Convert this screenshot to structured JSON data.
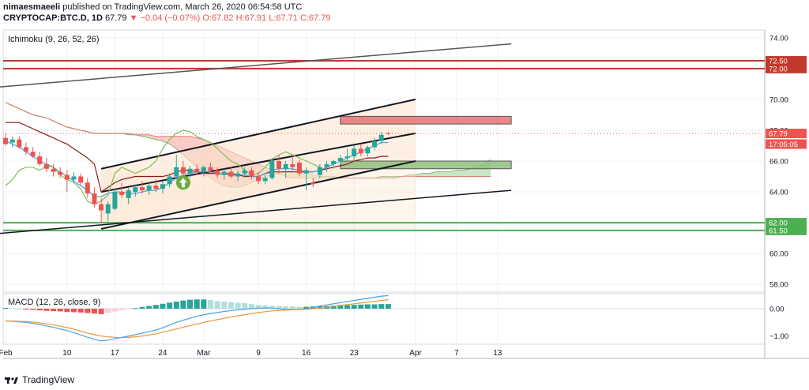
{
  "header": {
    "publisher": "nimaesmaeeli",
    "published_line": " published on TradingView.com, March 26, 2020 06:54:58 UTC",
    "symbol": "CRYPTOCAP:BTC.D, 1D",
    "last": "67.79",
    "change": "▼ −0.04 (−0.07%)",
    "o": "O:67.82",
    "h": "H:67.91",
    "l": "L:67.71",
    "c": "C:67.79"
  },
  "indicators": {
    "ichimoku_label": "Ichimoku (9, 26, 52, 26)",
    "macd_label": "MACD (12, 26, close, 9)"
  },
  "brand": {
    "name": "TradingView"
  },
  "colors": {
    "up": "#26a69a",
    "down": "#ef5350",
    "tenkan": "#4aa3df",
    "kijun": "#8b1a1a",
    "chikou": "#7cbf5a",
    "cloud_bull": "#b7dfb0",
    "cloud_bear": "#f7b9b4",
    "channel_fill": "#fbe3cc",
    "macd_line": "#4aa3df",
    "signal_line": "#e79a3b",
    "res_line": "#c0392b",
    "sup_line": "#4caf50"
  },
  "chart_data": {
    "type": "candlestick",
    "price_axis": {
      "min": 57.5,
      "max": 74.5,
      "ticks": [
        58,
        60,
        62,
        64,
        66,
        68,
        70,
        72,
        74
      ]
    },
    "macd_axis": {
      "min": -1.3,
      "max": 0.55,
      "ticks": [
        0.0,
        -1.0
      ]
    },
    "x_axis": {
      "labels": [
        {
          "label": "Feb",
          "day": 0
        },
        {
          "label": "10",
          "day": 9
        },
        {
          "label": "17",
          "day": 16
        },
        {
          "label": "24",
          "day": 23
        },
        {
          "label": "Mar",
          "day": 29
        },
        {
          "label": "9",
          "day": 37
        },
        {
          "label": "16",
          "day": 44
        },
        {
          "label": "23",
          "day": 51
        },
        {
          "label": "Apr",
          "day": 60
        },
        {
          "label": "7",
          "day": 66
        },
        {
          "label": "13",
          "day": 72
        }
      ]
    },
    "price_labels": [
      {
        "value": 72.5,
        "text": "72.50",
        "color": "#c0392b"
      },
      {
        "value": 72.0,
        "text": "72.00",
        "color": "#c0392b"
      },
      {
        "value": 67.79,
        "text": "67.79",
        "color": "#ef5350"
      },
      {
        "value": 67.1,
        "text": "17:05:05",
        "color": "#ef5350"
      },
      {
        "value": 62.0,
        "text": "62.00",
        "color": "#4caf50"
      },
      {
        "value": 61.5,
        "text": "61.50",
        "color": "#4caf50"
      }
    ],
    "candles": [
      {
        "o": 67.5,
        "h": 67.8,
        "l": 67.0,
        "c": 67.1
      },
      {
        "o": 67.2,
        "h": 67.6,
        "l": 66.9,
        "c": 67.4
      },
      {
        "o": 67.4,
        "h": 67.6,
        "l": 66.8,
        "c": 66.9
      },
      {
        "o": 66.9,
        "h": 67.2,
        "l": 66.4,
        "c": 66.6
      },
      {
        "o": 66.6,
        "h": 66.9,
        "l": 66.2,
        "c": 66.3
      },
      {
        "o": 66.3,
        "h": 66.6,
        "l": 65.7,
        "c": 65.8
      },
      {
        "o": 65.8,
        "h": 66.2,
        "l": 65.3,
        "c": 65.5
      },
      {
        "o": 65.5,
        "h": 65.8,
        "l": 65.0,
        "c": 65.3
      },
      {
        "o": 65.3,
        "h": 65.6,
        "l": 64.9,
        "c": 65.1
      },
      {
        "o": 65.1,
        "h": 65.4,
        "l": 64.0,
        "c": 64.8
      },
      {
        "o": 64.8,
        "h": 65.3,
        "l": 64.6,
        "c": 65.0
      },
      {
        "o": 65.0,
        "h": 65.2,
        "l": 64.4,
        "c": 64.6
      },
      {
        "o": 64.6,
        "h": 64.9,
        "l": 63.6,
        "c": 63.9
      },
      {
        "o": 63.9,
        "h": 64.3,
        "l": 63.0,
        "c": 63.2
      },
      {
        "o": 63.2,
        "h": 63.6,
        "l": 62.0,
        "c": 62.8
      },
      {
        "o": 62.6,
        "h": 63.4,
        "l": 62.1,
        "c": 63.2
      },
      {
        "o": 62.9,
        "h": 64.2,
        "l": 62.8,
        "c": 64.0
      },
      {
        "o": 64.0,
        "h": 64.6,
        "l": 63.6,
        "c": 63.8
      },
      {
        "o": 63.6,
        "h": 64.3,
        "l": 63.2,
        "c": 64.1
      },
      {
        "o": 64.0,
        "h": 64.5,
        "l": 63.7,
        "c": 64.3
      },
      {
        "o": 64.3,
        "h": 64.7,
        "l": 63.9,
        "c": 64.1
      },
      {
        "o": 64.1,
        "h": 64.6,
        "l": 63.8,
        "c": 64.4
      },
      {
        "o": 64.4,
        "h": 64.8,
        "l": 64.0,
        "c": 64.2
      },
      {
        "o": 64.2,
        "h": 64.7,
        "l": 63.9,
        "c": 64.5
      },
      {
        "o": 64.5,
        "h": 65.2,
        "l": 64.3,
        "c": 65.0
      },
      {
        "o": 65.0,
        "h": 66.4,
        "l": 64.8,
        "c": 65.6
      },
      {
        "o": 65.6,
        "h": 66.0,
        "l": 65.0,
        "c": 65.2
      },
      {
        "o": 65.2,
        "h": 65.7,
        "l": 64.9,
        "c": 65.5
      },
      {
        "o": 65.5,
        "h": 65.8,
        "l": 65.1,
        "c": 65.3
      },
      {
        "o": 65.3,
        "h": 65.7,
        "l": 65.0,
        "c": 65.6
      },
      {
        "o": 65.6,
        "h": 65.9,
        "l": 65.2,
        "c": 65.4
      },
      {
        "o": 65.4,
        "h": 65.6,
        "l": 64.9,
        "c": 65.1
      },
      {
        "o": 65.1,
        "h": 65.5,
        "l": 64.8,
        "c": 65.3
      },
      {
        "o": 65.3,
        "h": 65.6,
        "l": 64.9,
        "c": 65.0
      },
      {
        "o": 65.0,
        "h": 65.4,
        "l": 64.7,
        "c": 65.2
      },
      {
        "o": 65.2,
        "h": 65.6,
        "l": 64.9,
        "c": 65.4
      },
      {
        "o": 65.4,
        "h": 65.6,
        "l": 64.8,
        "c": 65.0
      },
      {
        "o": 65.0,
        "h": 65.3,
        "l": 64.5,
        "c": 64.7
      },
      {
        "o": 64.7,
        "h": 65.1,
        "l": 64.5,
        "c": 64.9
      },
      {
        "o": 64.9,
        "h": 66.2,
        "l": 64.8,
        "c": 66.0
      },
      {
        "o": 66.0,
        "h": 66.4,
        "l": 65.2,
        "c": 65.5
      },
      {
        "o": 65.5,
        "h": 66.0,
        "l": 64.9,
        "c": 65.8
      },
      {
        "o": 65.8,
        "h": 66.4,
        "l": 65.4,
        "c": 65.6
      },
      {
        "o": 65.9,
        "h": 66.1,
        "l": 65.0,
        "c": 65.2
      },
      {
        "o": 65.2,
        "h": 65.6,
        "l": 64.1,
        "c": 65.4
      },
      {
        "o": 64.6,
        "h": 64.9,
        "l": 64.3,
        "c": 64.5
      },
      {
        "o": 65.1,
        "h": 65.8,
        "l": 64.9,
        "c": 65.6
      },
      {
        "o": 65.6,
        "h": 66.0,
        "l": 65.3,
        "c": 65.8
      },
      {
        "o": 65.8,
        "h": 66.1,
        "l": 65.5,
        "c": 66.0
      },
      {
        "o": 66.0,
        "h": 66.4,
        "l": 65.8,
        "c": 66.2
      },
      {
        "o": 66.2,
        "h": 66.8,
        "l": 66.0,
        "c": 66.3
      },
      {
        "o": 66.3,
        "h": 67.0,
        "l": 66.0,
        "c": 66.8
      },
      {
        "o": 66.8,
        "h": 67.1,
        "l": 66.3,
        "c": 66.5
      },
      {
        "o": 66.5,
        "h": 67.0,
        "l": 66.3,
        "c": 66.9
      },
      {
        "o": 66.9,
        "h": 67.5,
        "l": 66.7,
        "c": 67.3
      },
      {
        "o": 67.3,
        "h": 67.9,
        "l": 67.1,
        "c": 67.7
      },
      {
        "o": 67.8,
        "h": 67.9,
        "l": 67.7,
        "c": 67.79
      }
    ],
    "tenkan": [
      67.3,
      67.1,
      66.9,
      66.6,
      66.3,
      66.0,
      65.8,
      65.6,
      65.3,
      65.0,
      64.7,
      64.4,
      64.1,
      63.7,
      63.7,
      63.9,
      64.0,
      64.0,
      63.9,
      63.9,
      64.0,
      64.1,
      64.1,
      64.3,
      64.6,
      64.9,
      65.1,
      65.2,
      65.3,
      65.3,
      65.3,
      65.2,
      65.2,
      65.2,
      65.1,
      65.1,
      65.0,
      65.0,
      65.2,
      65.4,
      65.5,
      65.5,
      65.5,
      65.4,
      65.3,
      65.3,
      65.4,
      65.6,
      65.8,
      66.0,
      66.2,
      66.4,
      66.6,
      66.8,
      67.0,
      67.2,
      67.2
    ],
    "kijun": [
      68.5,
      68.5,
      68.5,
      68.3,
      68.1,
      67.9,
      67.7,
      67.5,
      67.3,
      67.1,
      66.8,
      66.5,
      66.2,
      65.8,
      64.0,
      64.3,
      64.6,
      64.8,
      64.9,
      65.0,
      65.0,
      65.0,
      65.0,
      65.0,
      65.1,
      65.3,
      65.4,
      65.4,
      65.3,
      65.2,
      65.2,
      65.2,
      65.2,
      65.1,
      65.1,
      65.0,
      65.0,
      65.0,
      65.2,
      65.3,
      65.3,
      65.3,
      65.3,
      65.3,
      65.3,
      65.3,
      65.4,
      65.5,
      65.6,
      65.7,
      65.8,
      66.0,
      66.1,
      66.2,
      66.2,
      66.3,
      66.3
    ],
    "chikou": [
      64.4,
      64.8,
      65.4,
      65.6,
      65.6,
      65.4,
      65.7,
      65.6,
      65.1,
      64.8,
      64.6,
      64.2,
      63.4,
      63.2,
      63.4,
      63.8,
      65.2,
      65.6,
      65.4,
      65.2,
      65.4,
      65.6,
      66.0,
      66.8,
      67.4,
      67.8,
      68.0,
      67.9,
      67.6,
      67.4,
      67.2,
      66.8,
      66.4,
      66.0,
      65.8,
      65.4,
      65.1,
      65.2,
      65.6,
      66.1,
      66.4,
      66.6,
      66.4,
      66.2,
      66.0,
      65.8,
      65.6
    ],
    "span_a": [
      69.8,
      69.6,
      69.4,
      69.2,
      69.0,
      68.9,
      68.8,
      68.6,
      68.4,
      68.2,
      68.1,
      68.0,
      67.9,
      67.8,
      67.8,
      67.8,
      67.8,
      67.8,
      67.8,
      67.7,
      67.6,
      67.5,
      67.4,
      67.3,
      67.1,
      66.8,
      66.4,
      66.0,
      65.6,
      65.2,
      64.9,
      64.6,
      64.4,
      64.3,
      64.3,
      64.4,
      64.6,
      64.8,
      65.0,
      65.1,
      65.2,
      65.3,
      65.4,
      65.5,
      65.3,
      65.1,
      65.0,
      65.0,
      65.0,
      64.9,
      64.9,
      64.9,
      64.9,
      64.9,
      64.9,
      65.0,
      65.0,
      65.0,
      65.0,
      65.1,
      65.1,
      65.2,
      65.2,
      65.3,
      65.3,
      65.3,
      65.4,
      65.4,
      65.5,
      65.6,
      65.8,
      66.1
    ],
    "span_b": [
      69.8,
      69.6,
      69.4,
      69.2,
      69.0,
      68.9,
      68.8,
      68.6,
      68.4,
      68.2,
      68.1,
      68.0,
      67.9,
      67.8,
      67.8,
      67.8,
      67.8,
      67.8,
      67.7,
      67.7,
      67.7,
      67.7,
      67.6,
      67.6,
      67.6,
      67.6,
      67.6,
      67.6,
      67.5,
      67.4,
      67.2,
      67.0,
      66.8,
      66.6,
      66.4,
      66.2,
      66.0,
      65.8,
      65.6,
      65.4,
      65.2,
      65.0,
      64.9,
      64.9,
      64.9,
      64.9,
      64.9,
      64.9,
      64.9,
      64.9,
      64.9,
      64.9,
      64.9,
      64.9,
      64.9,
      64.9,
      64.9,
      64.9,
      65.0,
      65.0,
      65.0,
      65.0,
      65.0,
      65.0,
      65.0,
      65.0,
      65.0,
      65.0,
      65.0,
      65.0,
      65.0,
      65.0
    ],
    "span_start_day": 0,
    "channel": {
      "upper": [
        [
          14,
          65.5
        ],
        [
          60,
          70.0
        ]
      ],
      "lower": [
        [
          14,
          61.6
        ],
        [
          60,
          66.0
        ]
      ],
      "mid": [
        [
          14,
          64.0
        ],
        [
          60,
          67.8
        ]
      ],
      "shade_from_day": 14,
      "shade_to_day": 60
    },
    "long_lines": [
      {
        "from": [
          -1,
          70.8
        ],
        "to": [
          74,
          73.6
        ],
        "color": "#555555"
      },
      {
        "from": [
          -1,
          61.3
        ],
        "to": [
          74,
          64.1
        ],
        "color": "#131722"
      }
    ],
    "hlines": [
      {
        "value": 72.5,
        "color": "#c0392b"
      },
      {
        "value": 72.0,
        "color": "#c0392b"
      },
      {
        "value": 62.0,
        "color": "#4caf50"
      },
      {
        "value": 61.5,
        "color": "#4caf50"
      }
    ],
    "zones": [
      {
        "from_day": 49,
        "to_day": 74,
        "top": 68.9,
        "bottom": 68.4,
        "color": "#e57373"
      },
      {
        "from_day": 49,
        "to_day": 74,
        "top": 66.0,
        "bottom": 65.5,
        "color": "#8fbf7a"
      }
    ],
    "arrow": {
      "day": 26,
      "value": 64.6
    },
    "macd_hist": [
      0.03,
      0.02,
      0.0,
      -0.02,
      -0.04,
      -0.06,
      -0.08,
      -0.09,
      -0.1,
      -0.12,
      -0.13,
      -0.14,
      -0.16,
      -0.18,
      -0.2,
      -0.15,
      -0.1,
      -0.05,
      -0.02,
      0.02,
      0.06,
      0.1,
      0.14,
      0.18,
      0.22,
      0.26,
      0.3,
      0.33,
      0.34,
      0.34,
      0.32,
      0.28,
      0.26,
      0.24,
      0.22,
      0.2,
      0.17,
      0.14,
      0.12,
      0.11,
      0.1,
      0.09,
      0.08,
      0.07,
      0.07,
      0.08,
      0.09,
      0.1,
      0.11,
      0.12,
      0.13,
      0.14,
      0.15,
      0.16,
      0.16,
      0.17,
      0.17
    ],
    "macd_line": [
      -0.45,
      -0.46,
      -0.48,
      -0.5,
      -0.54,
      -0.58,
      -0.63,
      -0.68,
      -0.74,
      -0.8,
      -0.88,
      -0.96,
      -1.05,
      -1.12,
      -1.18,
      -1.15,
      -1.1,
      -1.05,
      -1.0,
      -0.95,
      -0.9,
      -0.84,
      -0.78,
      -0.7,
      -0.6,
      -0.5,
      -0.42,
      -0.35,
      -0.28,
      -0.22,
      -0.18,
      -0.14,
      -0.1,
      -0.07,
      -0.04,
      -0.02,
      0.0,
      0.02,
      0.03,
      0.02,
      0.0,
      -0.02,
      -0.03,
      -0.02,
      0.0,
      0.05,
      0.1,
      0.14,
      0.18,
      0.22,
      0.26,
      0.3,
      0.34,
      0.38,
      0.42,
      0.46,
      0.48
    ],
    "signal_line": [
      -0.45,
      -0.45,
      -0.46,
      -0.47,
      -0.49,
      -0.52,
      -0.55,
      -0.59,
      -0.64,
      -0.69,
      -0.75,
      -0.82,
      -0.89,
      -0.95,
      -1.0,
      -1.03,
      -1.05,
      -1.06,
      -1.05,
      -1.03,
      -1.0,
      -0.96,
      -0.92,
      -0.86,
      -0.8,
      -0.74,
      -0.68,
      -0.62,
      -0.56,
      -0.5,
      -0.45,
      -0.4,
      -0.35,
      -0.3,
      -0.26,
      -0.22,
      -0.18,
      -0.14,
      -0.11,
      -0.08,
      -0.06,
      -0.05,
      -0.04,
      -0.03,
      -0.02,
      0.0,
      0.03,
      0.06,
      0.09,
      0.12,
      0.15,
      0.18,
      0.21,
      0.24,
      0.27,
      0.3,
      0.33
    ]
  }
}
